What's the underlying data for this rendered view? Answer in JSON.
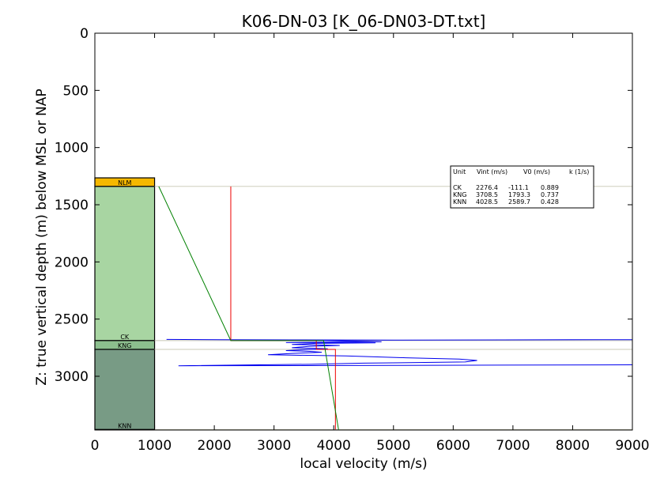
{
  "chart_data": {
    "type": "line",
    "title": "K06-DN-03 [K_06-DN03-DT.txt]",
    "xlabel": "local velocity (m/s)",
    "ylabel": "Z: true vertical depth (m) below MSL or NAP",
    "xlim": [
      0,
      9000
    ],
    "ylim": [
      3470,
      0
    ],
    "y_inverted": true,
    "xticks": [
      0,
      1000,
      2000,
      3000,
      4000,
      5000,
      6000,
      7000,
      8000,
      9000
    ],
    "yticks": [
      0,
      500,
      1000,
      1500,
      2000,
      2500,
      3000
    ],
    "grid": false,
    "units": [
      {
        "name": "NLM",
        "top": 1265,
        "base": 1340,
        "color": "#f5b800"
      },
      {
        "name": "CK",
        "top": 1340,
        "base": 2688,
        "color": "#a8d5a2"
      },
      {
        "name": "KNG",
        "top": 2688,
        "base": 2765,
        "color": "#8cbf8e"
      },
      {
        "name": "KNN",
        "top": 2765,
        "base": 3465,
        "color": "#789b85"
      }
    ],
    "horizon_lines": [
      1340,
      2688,
      2765,
      3465
    ],
    "series": [
      {
        "color": "#0000ee",
        "points": [
          [
            1200,
            2678
          ],
          [
            2100,
            2680
          ],
          [
            3300,
            2682
          ],
          [
            5000,
            2684
          ],
          [
            8000,
            2680
          ],
          [
            9000,
            2680
          ],
          [
            3600,
            2685
          ],
          [
            4200,
            2692
          ],
          [
            4800,
            2698
          ],
          [
            3200,
            2705
          ],
          [
            4700,
            2708
          ],
          [
            3700,
            2712
          ],
          [
            3300,
            2722
          ],
          [
            4100,
            2730
          ],
          [
            3600,
            2738
          ],
          [
            3300,
            2750
          ],
          [
            3900,
            2760
          ],
          [
            3500,
            2768
          ],
          [
            3200,
            2775
          ],
          [
            3600,
            2782
          ],
          [
            3800,
            2790
          ],
          [
            3300,
            2800
          ],
          [
            2900,
            2812
          ],
          [
            4200,
            2822
          ],
          [
            5200,
            2838
          ],
          [
            6100,
            2850
          ],
          [
            6400,
            2862
          ],
          [
            6200,
            2875
          ],
          [
            4500,
            2885
          ],
          [
            3600,
            2895
          ],
          [
            1400,
            2908
          ],
          [
            5000,
            2905
          ],
          [
            9000,
            2900
          ]
        ]
      },
      {
        "color": "#ee0000",
        "points": [
          [
            2276,
            1340
          ],
          [
            2276,
            2688
          ],
          [
            3708,
            2688
          ],
          [
            3708,
            2765
          ],
          [
            4028,
            2765
          ],
          [
            4028,
            3465
          ]
        ]
      },
      {
        "color": "#008000",
        "points": [
          [
            1070,
            1340
          ],
          [
            2276,
            2688
          ],
          [
            3830,
            2688
          ],
          [
            4080,
            3465
          ]
        ]
      }
    ],
    "table": {
      "headers": [
        "Unit",
        "Vint (m/s)",
        "V0 (m/s)",
        "k (1/s)"
      ],
      "rows": [
        [
          "CK",
          "2276.4",
          "-111.1",
          "0.889"
        ],
        [
          "KNG",
          "3708.5",
          "1793.3",
          "0.737"
        ],
        [
          "KNN",
          "4028.5",
          "2589.7",
          "0.428"
        ]
      ]
    }
  }
}
